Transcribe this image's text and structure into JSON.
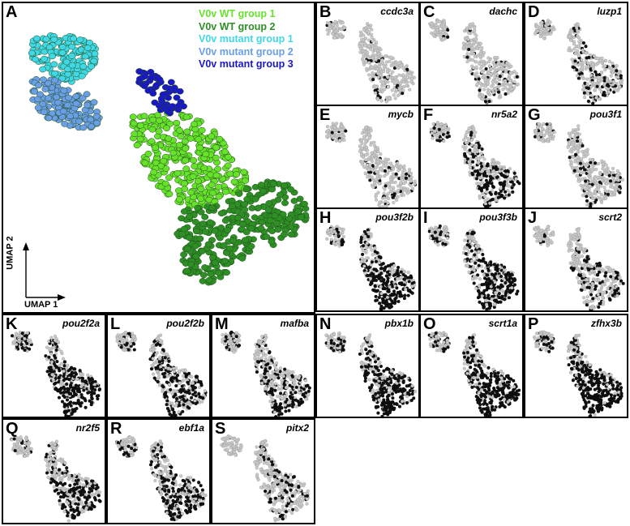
{
  "panel_a": {
    "label": "A",
    "legend": [
      {
        "text": "V0v WT group 1",
        "color": "#66e22b"
      },
      {
        "text": "V0v WT group 2",
        "color": "#2e8f25"
      },
      {
        "text": "V0v mutant group 1",
        "color": "#40d8e6"
      },
      {
        "text": "V0v mutant group 2",
        "color": "#6a9ee6"
      },
      {
        "text": "V0v mutant group 3",
        "color": "#1a17c8"
      }
    ],
    "axis_x": "UMAP 1",
    "axis_y": "UMAP 2"
  },
  "gene_panels": [
    {
      "label": "B",
      "gene": "ccdc3a",
      "expr": 0.08
    },
    {
      "label": "C",
      "gene": "dachc",
      "expr": 0.12
    },
    {
      "label": "D",
      "gene": "luzp1",
      "expr": 0.25
    },
    {
      "label": "E",
      "gene": "mycb",
      "expr": 0.15
    },
    {
      "label": "F",
      "gene": "nr5a2",
      "expr": 0.45
    },
    {
      "label": "G",
      "gene": "pou3f1",
      "expr": 0.18
    },
    {
      "label": "H",
      "gene": "pou3f2b",
      "expr": 0.65
    },
    {
      "label": "I",
      "gene": "pou3f3b",
      "expr": 0.6
    },
    {
      "label": "J",
      "gene": "scrt2",
      "expr": 0.3
    },
    {
      "label": "K",
      "gene": "pou2f2a",
      "expr": 0.75
    },
    {
      "label": "L",
      "gene": "pou2f2b",
      "expr": 0.55
    },
    {
      "label": "M",
      "gene": "mafba",
      "expr": 0.5
    },
    {
      "label": "N",
      "gene": "pbx1b",
      "expr": 0.7
    },
    {
      "label": "O",
      "gene": "scrt1a",
      "expr": 0.72
    },
    {
      "label": "P",
      "gene": "zfhx3b",
      "expr": 0.8
    },
    {
      "label": "Q",
      "gene": "nr2f5",
      "expr": 0.5
    },
    {
      "label": "R",
      "gene": "ebf1a",
      "expr": 0.5
    },
    {
      "label": "S",
      "gene": "pitx2",
      "expr": 0.2
    }
  ]
}
